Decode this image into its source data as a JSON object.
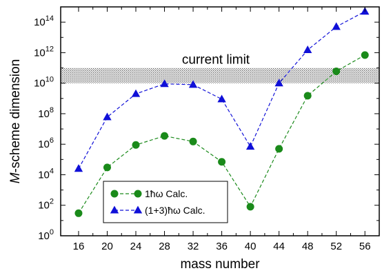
{
  "chart_data": {
    "type": "line",
    "x": [
      16,
      20,
      24,
      28,
      32,
      36,
      40,
      44,
      48,
      52,
      56
    ],
    "x_tick_labels": [
      "16",
      "20",
      "24",
      "28",
      "32",
      "36",
      "40",
      "44",
      "48",
      "52",
      "56"
    ],
    "xlim": [
      13.5,
      58
    ],
    "y_scale": "log",
    "ylim_exp": [
      0,
      15
    ],
    "y_tick_labels": [
      {
        "base": "10",
        "exp": "0",
        "e": 0
      },
      {
        "base": "10",
        "exp": "2",
        "e": 2
      },
      {
        "base": "10",
        "exp": "4",
        "e": 4
      },
      {
        "base": "10",
        "exp": "6",
        "e": 6
      },
      {
        "base": "10",
        "exp": "8",
        "e": 8
      },
      {
        "base": "10",
        "exp": "10",
        "e": 10
      },
      {
        "base": "10",
        "exp": "12",
        "e": 12
      },
      {
        "base": "10",
        "exp": "14",
        "e": 14
      }
    ],
    "xlabel": "mass number",
    "ylabel_italic": "M",
    "ylabel_rest": "-scheme dimension",
    "series": [
      {
        "name": "1ħω Calc.",
        "color": "#1a8a1a",
        "marker": "circle",
        "values": [
          30.0,
          30000.0,
          900000.0,
          3500000.0,
          1500000.0,
          70000.0,
          80.0,
          500000.0,
          1500000000.0,
          60000000000.0,
          700000000000.0
        ]
      },
      {
        "name": "(1+3)ħω Calc.",
        "color": "#1010d8",
        "marker": "triangle",
        "values": [
          25000.0,
          60000000.0,
          2000000000.0,
          9000000000.0,
          8000000000.0,
          900000000.0,
          700000.0,
          10000000000.0,
          1500000000000.0,
          50000000000000.0,
          500000000000000.0
        ]
      }
    ],
    "band": {
      "label": "current limit",
      "y_low": 10000000000.0,
      "y_high": 100000000000.0
    },
    "legend_placement": "lower-left",
    "grid": false
  }
}
